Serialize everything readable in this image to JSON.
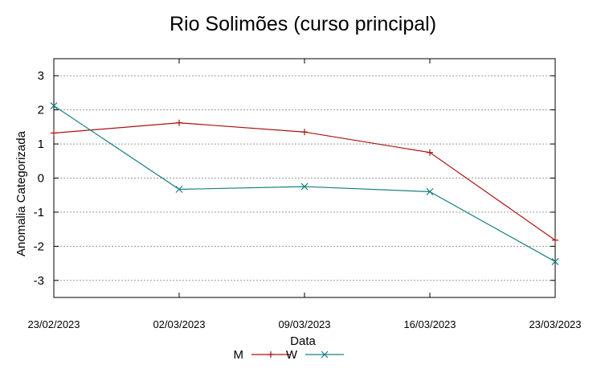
{
  "chart_data": {
    "type": "line",
    "title": "Rio Solimões (curso principal)",
    "xlabel": "Data",
    "ylabel": "Anomalia Categorizada",
    "categories": [
      "23/02/2023",
      "02/03/2023",
      "09/03/2023",
      "16/03/2023",
      "23/03/2023"
    ],
    "ylim": [
      -3.5,
      3.5
    ],
    "yticks": [
      -3,
      -2,
      -1,
      0,
      1,
      2,
      3
    ],
    "ytick_labels": [
      "-3",
      "-2",
      "-1",
      "0",
      "1",
      "2",
      "3"
    ],
    "grid": true,
    "legend_position": "bottom-center",
    "series": [
      {
        "name": "M",
        "color": "#aa1111",
        "marker": "plus",
        "values": [
          1.32,
          1.62,
          1.35,
          0.75,
          -1.82
        ]
      },
      {
        "name": "W",
        "color": "#1a8080",
        "marker": "cross",
        "values": [
          2.12,
          -0.33,
          -0.25,
          -0.4,
          -2.45
        ]
      }
    ]
  }
}
